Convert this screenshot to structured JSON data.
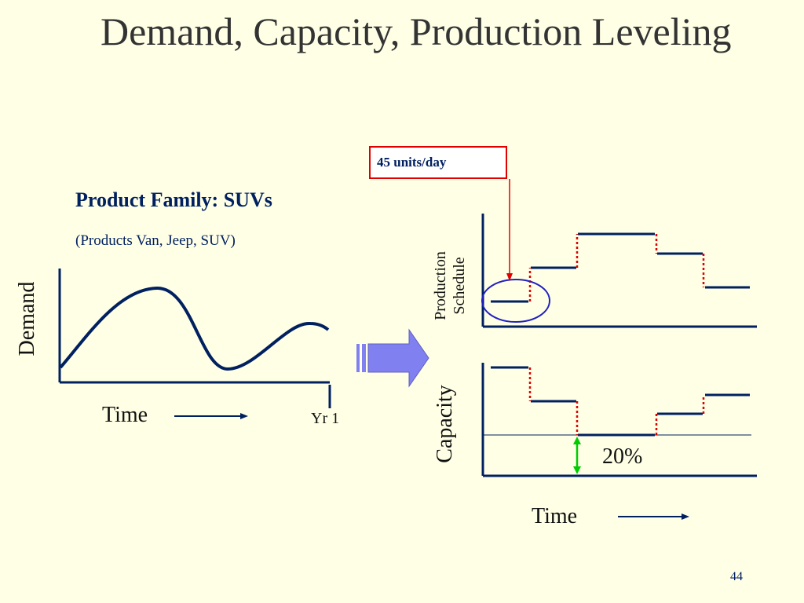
{
  "slide": {
    "title": "Demand, Capacity, Production Leveling",
    "page_number": "44"
  },
  "left_panel": {
    "product_family": "Product Family: SUVs",
    "products": "(Products Van, Jeep, SUV)",
    "y_label": "Demand",
    "x_label": "Time",
    "end_label": "Yr 1"
  },
  "right_panel": {
    "callout": "45 units/day",
    "production_label_line1": "Production",
    "production_label_line2": "Schedule",
    "capacity_label": "Capacity",
    "x_label": "Time",
    "gap_label": "20%"
  },
  "colors": {
    "line": "#002060",
    "step_connector": "#e00000",
    "callout_border": "#e00000",
    "ellipse": "#2020c0",
    "gap_arrow": "#00cc00",
    "block_arrow": "#8080f0"
  }
}
